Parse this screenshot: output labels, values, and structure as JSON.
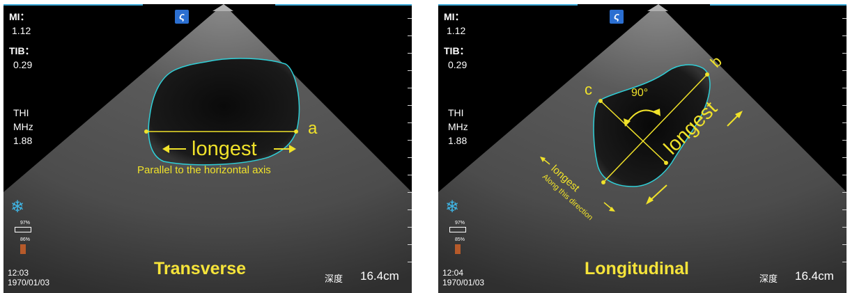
{
  "panels": [
    {
      "mi_label": "MI：",
      "mi_value": "1.12",
      "tib_label": "TIB：",
      "tib_value": "0.29",
      "thi": "THI",
      "mhz": "MHz",
      "freq": "1.88",
      "battery_top": "97%",
      "battery_bottom": "86%",
      "time": "12:03",
      "date": "1970/01/03",
      "depth_label": "深度",
      "depth_value": "16.4cm",
      "view_label": "Transverse",
      "annotations": {
        "letter_a": "a",
        "longest": "longest",
        "parallel": "Parallel to the horizontal axis"
      }
    },
    {
      "mi_label": "MI：",
      "mi_value": "1.12",
      "tib_label": "TIB：",
      "tib_value": "0.29",
      "thi": "THI",
      "mhz": "MHz",
      "freq": "1.88",
      "battery_top": "97%",
      "battery_bottom": "85%",
      "time": "12:04",
      "date": "1970/01/03",
      "depth_label": "深度",
      "depth_value": "16.4cm",
      "view_label": "Longitudinal",
      "annotations": {
        "letter_b": "b",
        "letter_c": "c",
        "angle": "90°",
        "longest_big": "longest",
        "longest_small": "longest",
        "along": "Along this direction"
      }
    }
  ],
  "colors": {
    "annotation": "#f0e22a",
    "outline": "#2fd0d8",
    "background": "#000000"
  }
}
